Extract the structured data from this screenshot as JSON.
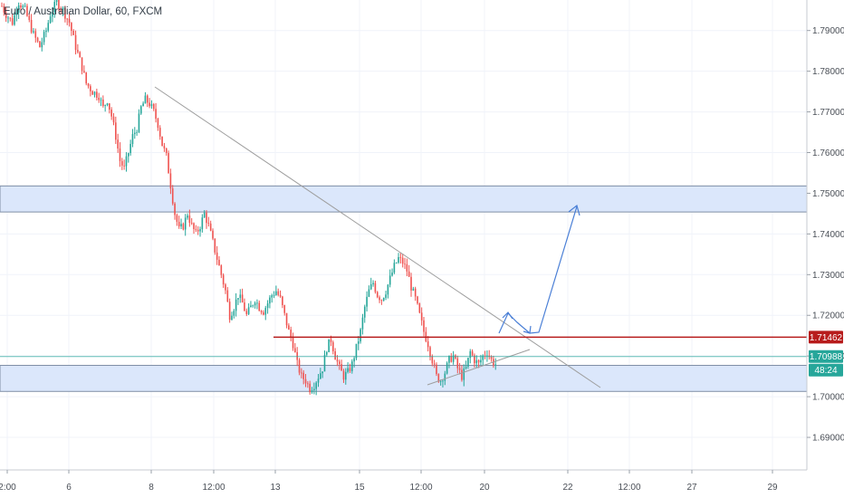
{
  "chart_data": {
    "type": "candlestick",
    "title": "Euro / Australian Dollar, 60, FXCM",
    "ylim": [
      1.682,
      1.7975
    ],
    "y_ticks": [
      1.79,
      1.78,
      1.77,
      1.76,
      1.75,
      1.74,
      1.73,
      1.72,
      1.71,
      1.7,
      1.69
    ],
    "y_tick_labels": [
      "1.79000",
      "1.78000",
      "1.77000",
      "1.76000",
      "1.75000",
      "1.74000",
      "1.73000",
      "1.72000",
      "1.71000",
      "1.70000",
      "1.69000"
    ],
    "x_tick_labels": [
      "2:00",
      "6",
      "8",
      "12:00",
      "13",
      "15",
      "12:00",
      "20",
      "22",
      "12:00",
      "27",
      "29"
    ],
    "price_labels": {
      "level": "1.71462",
      "last": "1.70988",
      "countdown": "48:24"
    },
    "price_path": [
      [
        0,
        1.796
      ],
      [
        2,
        1.794
      ],
      [
        5,
        1.792
      ],
      [
        8,
        1.797
      ],
      [
        11,
        1.795
      ],
      [
        15,
        1.789
      ],
      [
        18,
        1.786
      ],
      [
        21,
        1.79
      ],
      [
        23,
        1.794
      ],
      [
        26,
        1.797
      ],
      [
        29,
        1.795
      ],
      [
        32,
        1.792
      ],
      [
        35,
        1.786
      ],
      [
        38,
        1.781
      ],
      [
        40,
        1.777
      ],
      [
        43,
        1.775
      ],
      [
        46,
        1.774
      ],
      [
        48,
        1.771
      ],
      [
        50,
        1.773
      ],
      [
        52,
        1.769
      ],
      [
        54,
        1.764
      ],
      [
        56,
        1.758
      ],
      [
        58,
        1.756
      ],
      [
        60,
        1.76
      ],
      [
        62,
        1.764
      ],
      [
        64,
        1.766
      ],
      [
        66,
        1.771
      ],
      [
        68,
        1.773
      ],
      [
        70,
        1.772
      ],
      [
        72,
        1.77
      ],
      [
        74,
        1.767
      ],
      [
        76,
        1.762
      ],
      [
        78,
        1.759
      ],
      [
        80,
        1.752
      ],
      [
        82,
        1.745
      ],
      [
        84,
        1.741
      ],
      [
        86,
        1.742
      ],
      [
        88,
        1.745
      ],
      [
        90,
        1.742
      ],
      [
        92,
        1.74
      ],
      [
        94,
        1.742
      ],
      [
        96,
        1.745
      ],
      [
        98,
        1.742
      ],
      [
        100,
        1.738
      ],
      [
        102,
        1.734
      ],
      [
        104,
        1.73
      ],
      [
        106,
        1.726
      ],
      [
        108,
        1.72
      ],
      [
        110,
        1.722
      ],
      [
        112,
        1.725
      ],
      [
        114,
        1.723
      ],
      [
        116,
        1.72
      ],
      [
        118,
        1.722
      ],
      [
        120,
        1.724
      ],
      [
        122,
        1.722
      ],
      [
        124,
        1.721
      ],
      [
        126,
        1.723
      ],
      [
        128,
        1.725
      ],
      [
        130,
        1.726
      ],
      [
        132,
        1.724
      ],
      [
        134,
        1.72
      ],
      [
        136,
        1.716
      ],
      [
        138,
        1.713
      ],
      [
        140,
        1.708
      ],
      [
        142,
        1.705
      ],
      [
        144,
        1.704
      ],
      [
        146,
        1.702
      ],
      [
        148,
        1.703
      ],
      [
        150,
        1.705
      ],
      [
        152,
        1.707
      ],
      [
        154,
        1.712
      ],
      [
        156,
        1.714
      ],
      [
        158,
        1.71
      ],
      [
        160,
        1.707
      ],
      [
        162,
        1.705
      ],
      [
        164,
        1.706
      ],
      [
        166,
        1.708
      ],
      [
        168,
        1.712
      ],
      [
        170,
        1.716
      ],
      [
        172,
        1.722
      ],
      [
        174,
        1.726
      ],
      [
        176,
        1.728
      ],
      [
        178,
        1.725
      ],
      [
        180,
        1.724
      ],
      [
        182,
        1.726
      ],
      [
        184,
        1.729
      ],
      [
        186,
        1.732
      ],
      [
        188,
        1.734
      ],
      [
        190,
        1.733
      ],
      [
        192,
        1.731
      ],
      [
        194,
        1.727
      ],
      [
        196,
        1.724
      ],
      [
        198,
        1.72
      ],
      [
        200,
        1.716
      ],
      [
        202,
        1.713
      ],
      [
        204,
        1.709
      ],
      [
        206,
        1.705
      ],
      [
        208,
        1.704
      ],
      [
        210,
        1.706
      ],
      [
        212,
        1.709
      ],
      [
        214,
        1.71
      ],
      [
        216,
        1.707
      ],
      [
        218,
        1.705
      ],
      [
        220,
        1.707
      ],
      [
        222,
        1.711
      ],
      [
        224,
        1.709
      ],
      [
        226,
        1.708
      ],
      [
        228,
        1.71
      ],
      [
        230,
        1.711
      ],
      [
        232,
        1.709
      ],
      [
        234,
        1.708
      ]
    ],
    "price_path_x_unit": "hourly candles from first visible candle",
    "zones": [
      {
        "from": 1.7454,
        "to": 1.7518
      },
      {
        "from": 1.7013,
        "to": 1.7077
      }
    ],
    "horizontal_lines": [
      {
        "value": 1.71462,
        "color": "#b71c1c"
      },
      {
        "value": 1.70988,
        "color": "#26a69a"
      }
    ],
    "colors": {
      "up": "#26a69a",
      "down": "#ef5350",
      "zone": "#dbe7fb",
      "zone_border": "#7f8ea6",
      "trend": "#9e9e9e",
      "arrow": "#4a7fd6",
      "level": "#b71c1c",
      "last": "#26a69a"
    }
  }
}
